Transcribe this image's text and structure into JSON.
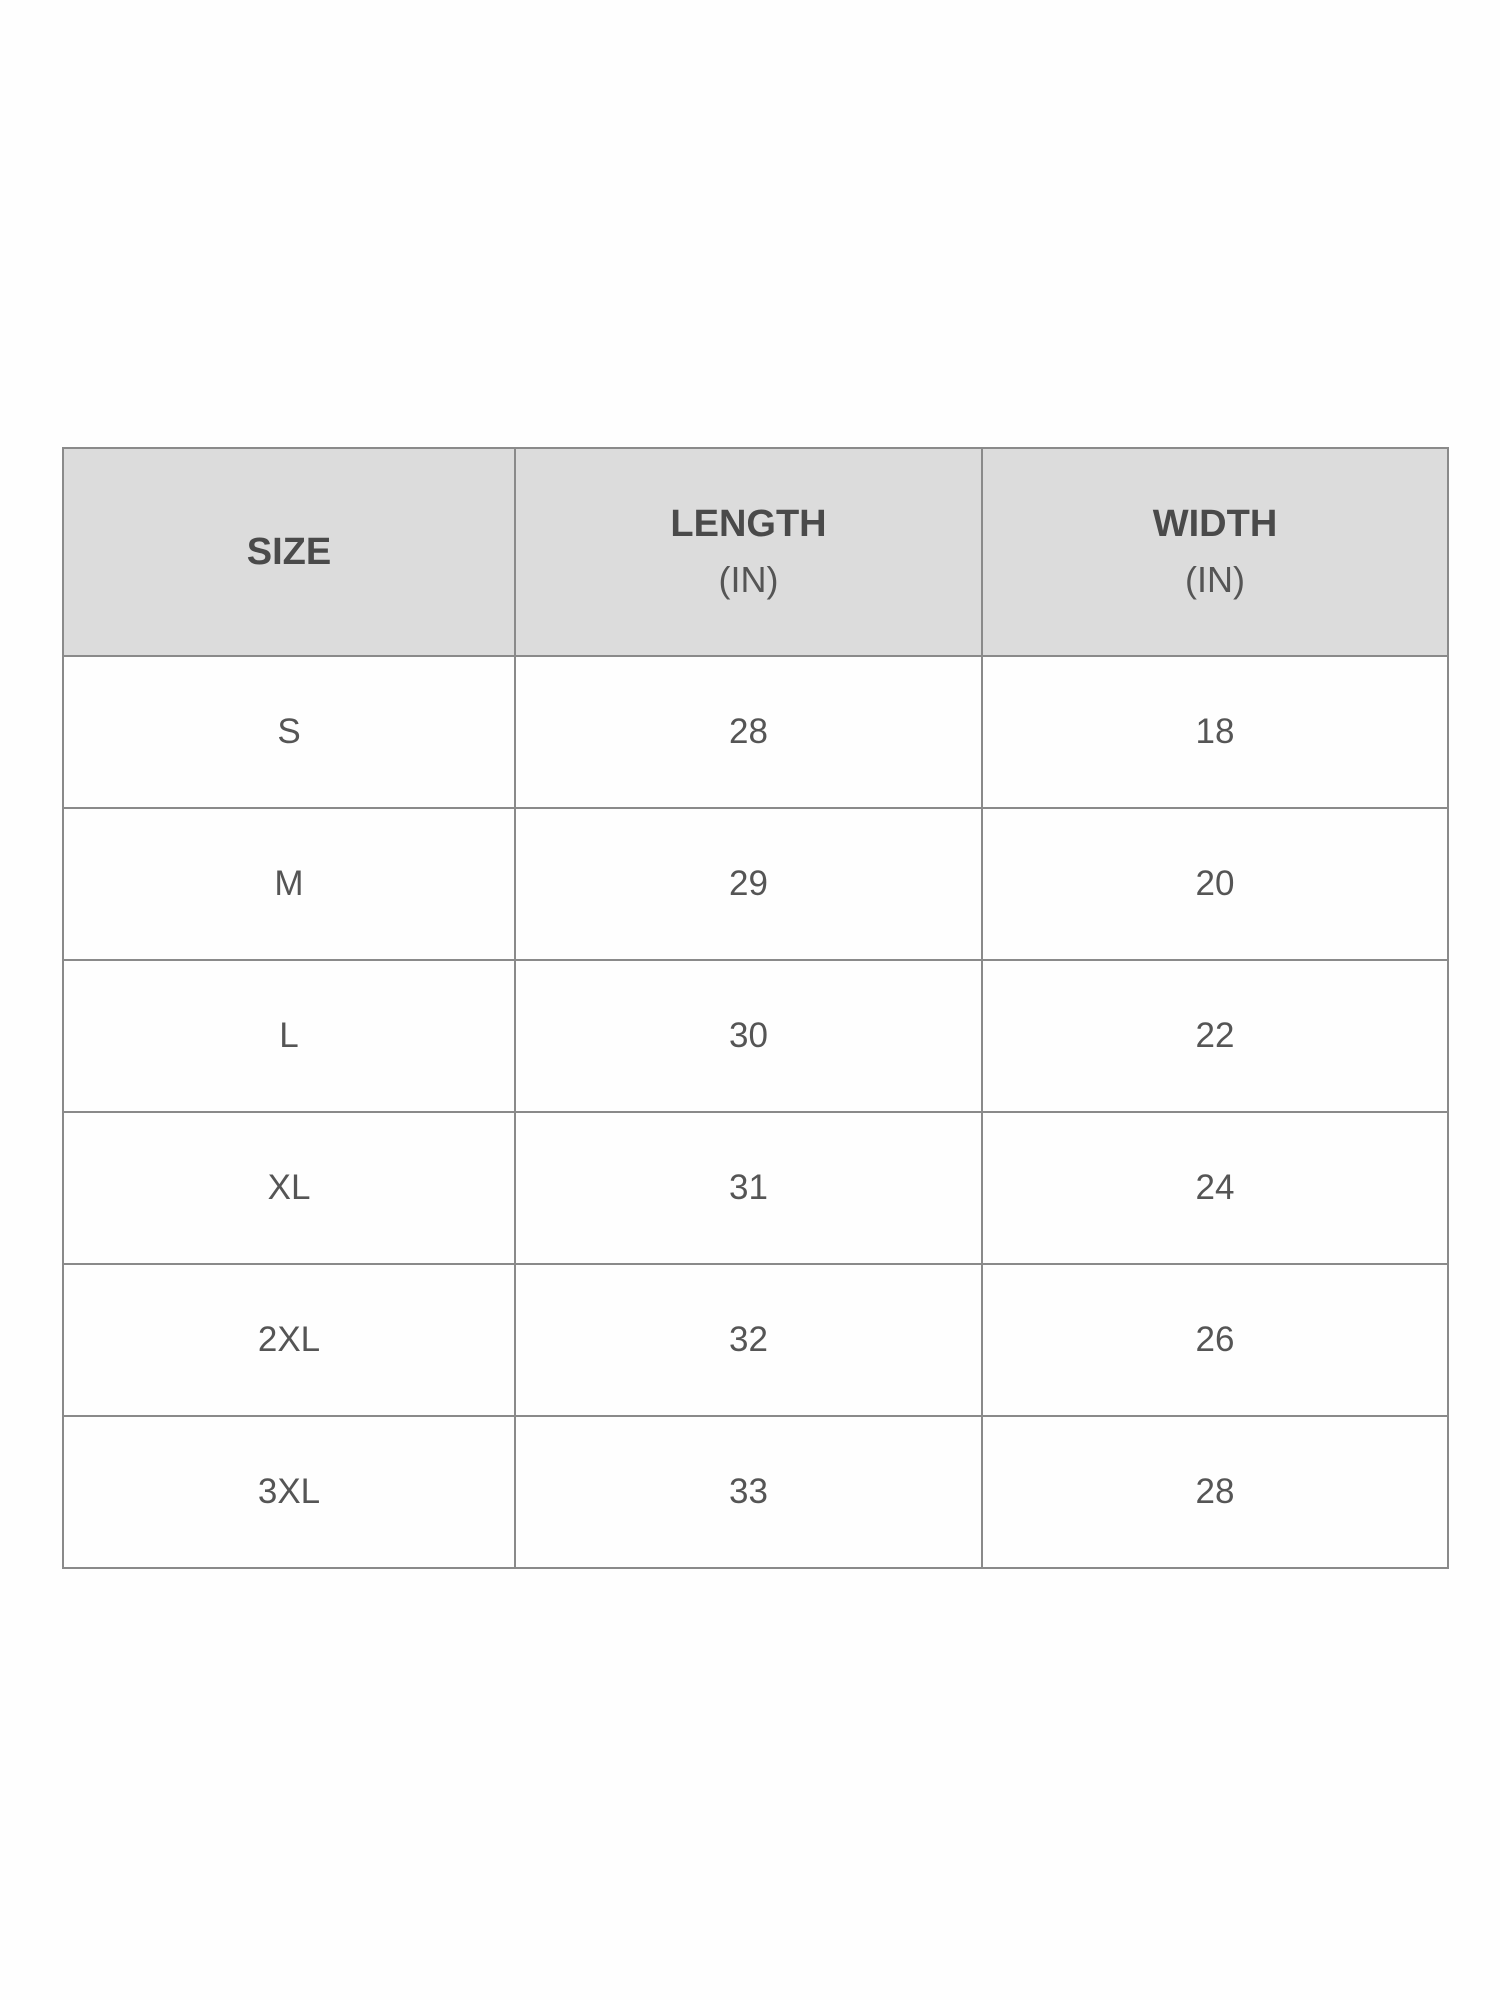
{
  "table": {
    "headers": [
      {
        "label": "SIZE",
        "unit": ""
      },
      {
        "label": "LENGTH",
        "unit": "(IN)"
      },
      {
        "label": "WIDTH",
        "unit": "(IN)"
      }
    ],
    "rows": [
      [
        "S",
        "28",
        "18"
      ],
      [
        "M",
        "29",
        "20"
      ],
      [
        "L",
        "30",
        "22"
      ],
      [
        "XL",
        "31",
        "24"
      ],
      [
        "2XL",
        "32",
        "26"
      ],
      [
        "3XL",
        "33",
        "28"
      ]
    ]
  },
  "colors": {
    "header_bg": "#dcdcdc",
    "border": "#8a8a8a",
    "text": "#4a4a4a"
  }
}
